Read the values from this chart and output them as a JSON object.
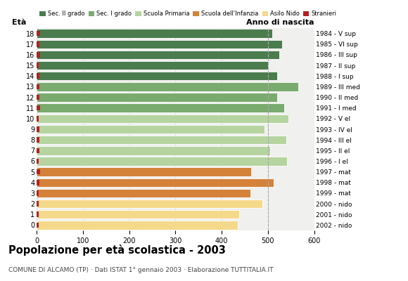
{
  "ages": [
    18,
    17,
    16,
    15,
    14,
    13,
    12,
    11,
    10,
    9,
    8,
    7,
    6,
    5,
    4,
    3,
    2,
    1,
    0
  ],
  "years": [
    "1984 - V sup",
    "1985 - VI sup",
    "1986 - III sup",
    "1987 - II sup",
    "1988 - I sup",
    "1989 - III med",
    "1990 - II med",
    "1991 - I med",
    "1992 - V el",
    "1993 - IV el",
    "1994 - III el",
    "1995 - II el",
    "1996 - I el",
    "1997 - mat",
    "1998 - mat",
    "1999 - mat",
    "2000 - nido",
    "2001 - nido",
    "2002 - nido"
  ],
  "values": [
    510,
    530,
    525,
    500,
    520,
    565,
    520,
    535,
    545,
    492,
    540,
    505,
    542,
    463,
    513,
    462,
    488,
    438,
    435
  ],
  "stranieri": [
    8,
    6,
    7,
    5,
    6,
    6,
    6,
    8,
    5,
    6,
    6,
    6,
    5,
    7,
    6,
    5,
    5,
    5,
    5
  ],
  "bar_colors": [
    "#4a7c4e",
    "#4a7c4e",
    "#4a7c4e",
    "#4a7c4e",
    "#4a7c4e",
    "#7aab6e",
    "#7aab6e",
    "#7aab6e",
    "#b5d4a0",
    "#b5d4a0",
    "#b5d4a0",
    "#b5d4a0",
    "#b5d4a0",
    "#d4813a",
    "#d4813a",
    "#d4813a",
    "#f5d98b",
    "#f5d98b",
    "#f5d98b"
  ],
  "legend_labels": [
    "Sec. II grado",
    "Sec. I grado",
    "Scuola Primaria",
    "Scuola dell'Infanzia",
    "Asilo Nido",
    "Stranieri"
  ],
  "legend_colors": [
    "#4a7c4e",
    "#7aab6e",
    "#b5d4a0",
    "#d4813a",
    "#f5d98b",
    "#b22222"
  ],
  "stranieri_color": "#b22222",
  "title": "Popolazione per età scolastica - 2003",
  "subtitle": "COMUNE DI ALCAMO (TP) · Dati ISTAT 1° gennaio 2003 · Elaborazione TUTTITALIA.IT",
  "xlabel_left": "Età",
  "xlabel_right": "Anno di nascita",
  "xlim": [
    0,
    600
  ],
  "xticks": [
    0,
    100,
    200,
    300,
    400,
    500,
    600
  ],
  "grid_color": "#cccccc",
  "bg_color": "#ffffff",
  "bar_bg_color": "#f0f0ee",
  "dashed_line_x": 500
}
